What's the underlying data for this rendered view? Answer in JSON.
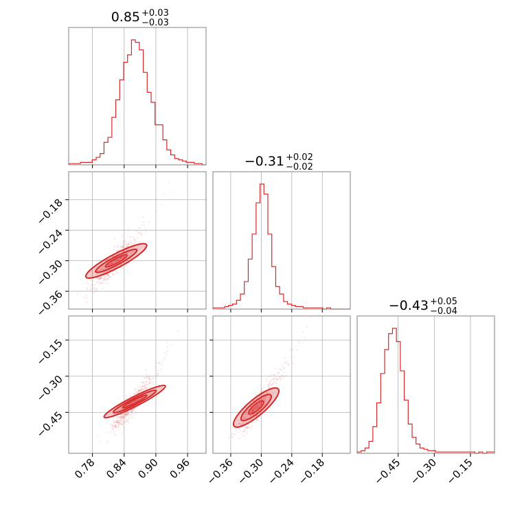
{
  "chart_data": {
    "type": "corner",
    "color": "#d62728",
    "grid": true,
    "parameters": [
      {
        "title_value": "0.85",
        "title_plus": "+0.03",
        "title_minus": "−0.03",
        "range": [
          0.735,
          0.995
        ],
        "ticks": [
          0.78,
          0.84,
          0.9,
          0.96
        ],
        "tick_labels": [
          "0.78",
          "0.84",
          "0.90",
          "0.96"
        ],
        "hist": [
          1,
          1,
          1,
          2,
          2,
          2,
          4,
          6,
          9,
          18,
          22,
          38,
          52,
          68,
          82,
          88,
          100,
          98,
          92,
          74,
          58,
          50,
          32,
          32,
          20,
          12,
          8,
          5,
          4,
          3,
          2,
          2,
          1,
          1,
          0
        ]
      },
      {
        "title_value": "−0.31",
        "title_plus": "+0.02",
        "title_minus": "−0.02",
        "range": [
          -0.395,
          -0.125
        ],
        "ticks": [
          -0.36,
          -0.3,
          -0.24,
          -0.18
        ],
        "tick_labels": [
          "−0.36",
          "−0.30",
          "−0.24",
          "−0.18"
        ],
        "hist": [
          1,
          1,
          1,
          2,
          3,
          4,
          7,
          12,
          22,
          40,
          60,
          85,
          100,
          92,
          60,
          34,
          18,
          12,
          6,
          4,
          3,
          2,
          2,
          1,
          1,
          1,
          1,
          1,
          0,
          1,
          0,
          0,
          0,
          0,
          0
        ]
      },
      {
        "title_value": "−0.43",
        "title_plus": "+0.05",
        "title_minus": "−0.04",
        "range": [
          -0.62,
          -0.05
        ],
        "ticks": [
          -0.45,
          -0.3,
          -0.15
        ],
        "tick_labels": [
          "−0.45",
          "−0.30",
          "−0.15"
        ],
        "hist": [
          1,
          2,
          4,
          9,
          20,
          38,
          60,
          78,
          90,
          94,
          84,
          62,
          40,
          22,
          12,
          7,
          4,
          3,
          2,
          2,
          1,
          1,
          1,
          1,
          1,
          1,
          1,
          1,
          1,
          1,
          0,
          1,
          0,
          1,
          1
        ]
      }
    ],
    "scatter_relations": {
      "p1_vs_p0": {
        "x0": 0.815,
        "y0": -0.31,
        "slope": 0.97,
        "noise": 0.012
      },
      "p2_vs_p0": {
        "x0": 0.85,
        "y0": -0.43,
        "slope": 2.5,
        "noise": 0.02
      },
      "p2_vs_p1": {
        "x0": -0.31,
        "y0": -0.43,
        "slope": 2.4,
        "noise": 0.025
      }
    }
  }
}
